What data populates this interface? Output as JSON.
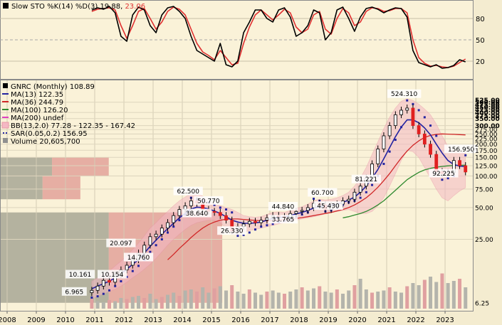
{
  "chart_data": [
    {
      "type": "line",
      "panel": "stochastic",
      "title_parts": {
        "prefix": "Slow STO %K(14) %D(3)",
        "k_value": "19.88",
        "d_value": "23.06"
      },
      "colors": {
        "k": "#000000",
        "d": "#e03030"
      },
      "ylim": [
        0,
        100
      ],
      "levels": [
        20,
        50,
        80
      ],
      "level_labels": [
        "80",
        "50",
        "20"
      ],
      "x": [
        2010.9,
        2011.1,
        2011.3,
        2011.5,
        2011.7,
        2011.9,
        2012.1,
        2012.3,
        2012.5,
        2012.7,
        2012.9,
        2013.1,
        2013.3,
        2013.5,
        2013.7,
        2013.9,
        2014.1,
        2014.3,
        2014.5,
        2014.7,
        2014.9,
        2015.1,
        2015.3,
        2015.5,
        2015.7,
        2015.9,
        2016.1,
        2016.3,
        2016.5,
        2016.7,
        2016.9,
        2017.1,
        2017.3,
        2017.5,
        2017.7,
        2017.9,
        2018.1,
        2018.3,
        2018.5,
        2018.7,
        2018.9,
        2019.1,
        2019.3,
        2019.5,
        2019.7,
        2019.9,
        2020.1,
        2020.3,
        2020.5,
        2020.7,
        2020.9,
        2021.1,
        2021.3,
        2021.5,
        2021.7,
        2021.9,
        2022.1,
        2022.3,
        2022.5,
        2022.7,
        2022.9,
        2023.1,
        2023.3,
        2023.5,
        2023.7
      ],
      "k": [
        92,
        95,
        93,
        97,
        88,
        55,
        48,
        85,
        96,
        92,
        70,
        60,
        85,
        95,
        97,
        90,
        80,
        55,
        35,
        30,
        25,
        20,
        45,
        15,
        12,
        20,
        60,
        75,
        92,
        92,
        80,
        75,
        92,
        95,
        82,
        55,
        60,
        70,
        92,
        88,
        50,
        60,
        92,
        96,
        80,
        62,
        82,
        94,
        96,
        93,
        88,
        92,
        95,
        94,
        82,
        35,
        18,
        15,
        12,
        15,
        10,
        11,
        14,
        22,
        19
      ],
      "d": [
        90,
        93,
        94,
        95,
        92,
        70,
        52,
        70,
        90,
        94,
        80,
        65,
        75,
        90,
        96,
        93,
        85,
        65,
        45,
        33,
        28,
        22,
        35,
        25,
        15,
        17,
        45,
        68,
        85,
        92,
        85,
        78,
        85,
        93,
        88,
        68,
        60,
        65,
        85,
        90,
        65,
        58,
        80,
        94,
        88,
        70,
        75,
        90,
        95,
        94,
        90,
        91,
        94,
        94,
        88,
        50,
        25,
        17,
        13,
        14,
        12,
        11,
        13,
        18,
        23
      ]
    },
    {
      "type": "line",
      "panel": "price",
      "title": "GNRC (Monthly) 108.89",
      "ylog": true,
      "ylim": [
        5.5,
        600
      ],
      "xlim": [
        2008,
        2023.95
      ],
      "x_tick_labels": [
        "2008",
        "2009",
        "2010",
        "2011",
        "2012",
        "2013",
        "2014",
        "2015",
        "2016",
        "2017",
        "2018",
        "2019",
        "2020",
        "2021",
        "2022",
        "2023"
      ],
      "y_tick_labels": [
        "525.00",
        "500.00",
        "475.00",
        "450.00",
        "425.00",
        "400.00",
        "375.00",
        "350.00",
        "300.00",
        "275.00",
        "250.00",
        "225.00",
        "200.00",
        "175.00",
        "150.00",
        "125.00",
        "100.00",
        "75.00",
        "50.00",
        "25.00",
        "6.25"
      ],
      "y_tick_values": [
        525,
        500,
        475,
        450,
        425,
        400,
        375,
        350,
        300,
        275,
        250,
        225,
        200,
        175,
        150,
        125,
        100,
        75,
        50,
        25,
        6.25
      ],
      "legend": [
        {
          "label": "GNRC (Monthly) 108.89",
          "color": "#000000",
          "marker": "square"
        },
        {
          "label": "MA(13) 122.35",
          "color": "#2323a0",
          "marker": "line"
        },
        {
          "label": "MA(36) 244.79",
          "color": "#d02828",
          "marker": "line"
        },
        {
          "label": "MA(100) 126.20",
          "color": "#2f8a2f",
          "marker": "line"
        },
        {
          "label": "MA(200) undef",
          "color": "#e040c0",
          "marker": "line"
        },
        {
          "label": "BB(13,2.0) 77.28 - 122.35 - 167.42",
          "color": "#f0a0b0",
          "marker": "band"
        },
        {
          "label": "SAR(0.05,0.2) 156.95",
          "color": "#2323a0",
          "marker": "dots"
        },
        {
          "label": "Volume 20,605,700",
          "color": "#909090",
          "marker": "square"
        }
      ],
      "annotations": [
        {
          "text": "524.310",
          "x": 2021.6,
          "y": 524.31
        },
        {
          "text": "156.950",
          "x": 2023.55,
          "y": 156.95
        },
        {
          "text": "92.225",
          "x": 2022.95,
          "y": 92.225
        },
        {
          "text": "81.221",
          "x": 2020.3,
          "y": 81.221
        },
        {
          "text": "60.700",
          "x": 2018.8,
          "y": 60.7
        },
        {
          "text": "45.430",
          "x": 2019.0,
          "y": 45.43
        },
        {
          "text": "44.840",
          "x": 2017.45,
          "y": 44.84
        },
        {
          "text": "33.765",
          "x": 2017.45,
          "y": 33.765
        },
        {
          "text": "62.500",
          "x": 2014.2,
          "y": 62.5
        },
        {
          "text": "50.770",
          "x": 2014.9,
          "y": 50.77
        },
        {
          "text": "38.640",
          "x": 2014.5,
          "y": 38.64
        },
        {
          "text": "26.330",
          "x": 2015.7,
          "y": 26.33
        },
        {
          "text": "20.097",
          "x": 2011.9,
          "y": 20.097
        },
        {
          "text": "14.760",
          "x": 2012.5,
          "y": 14.76
        },
        {
          "text": "10.161",
          "x": 2010.5,
          "y": 10.161
        },
        {
          "text": "10.154",
          "x": 2011.6,
          "y": 10.154
        },
        {
          "text": "6.965",
          "x": 2010.3,
          "y": 6.965
        }
      ],
      "series": [
        {
          "name": "GNRC (Monthly) 108.89",
          "color": "#000000",
          "y": [
            8.2,
            9.0,
            10.2,
            9.8,
            11.5,
            12.8,
            14.2,
            16.0,
            18.5,
            22.0,
            26.5,
            28.0,
            32.0,
            36.0,
            42.0,
            48.0,
            52.0,
            58.0,
            55.0,
            48.0,
            46.0,
            45.0,
            42.0,
            38.0,
            30.0,
            33.0,
            35.0,
            37.0,
            36.0,
            38.0,
            40.0,
            42.0,
            41.0,
            40.0,
            44.0,
            46.0,
            47.0,
            50.0,
            55.0,
            53.0,
            48.0,
            52.0,
            54.0,
            58.0,
            60.0,
            70.0,
            80.0,
            95.0,
            130.0,
            180.0,
            240.0,
            300.0,
            380.0,
            420.0,
            440.0,
            300.0,
            250.0,
            200.0,
            160.0,
            110.0,
            105.0,
            108.0,
            140.0,
            125.0,
            108.89
          ]
        },
        {
          "name": "MA(13) 122.35",
          "color": "#2323a0",
          "y": [
            8.5,
            9.0,
            9.5,
            10.0,
            10.8,
            11.8,
            13.0,
            14.5,
            16.0,
            18.5,
            21.5,
            24.5,
            28.0,
            31.5,
            35.5,
            40.0,
            44.0,
            48.5,
            50.5,
            50.0,
            48.5,
            46.5,
            44.0,
            41.0,
            38.0,
            36.5,
            35.5,
            35.5,
            35.8,
            36.5,
            38.0,
            39.5,
            40.2,
            40.8,
            42.0,
            43.5,
            45.0,
            47.0,
            49.5,
            51.0,
            51.5,
            52.5,
            54.0,
            56.0,
            59.0,
            63.0,
            70.0,
            80.0,
            95.0,
            115.0,
            145.0,
            185.0,
            235.0,
            290.0,
            340.0,
            340.0,
            320.0,
            285.0,
            245.0,
            200.0,
            165.0,
            140.0,
            128.0,
            124.0,
            122.35
          ]
        },
        {
          "name": "MA(36) 244.79",
          "color": "#d02828",
          "y": [
            null,
            null,
            null,
            null,
            null,
            null,
            null,
            null,
            null,
            null,
            null,
            null,
            null,
            16.0,
            18.0,
            20.5,
            23.0,
            26.0,
            29.0,
            32.0,
            34.5,
            36.5,
            38.0,
            38.8,
            39.0,
            39.0,
            38.6,
            38.2,
            37.8,
            37.5,
            37.5,
            37.6,
            38.0,
            38.5,
            39.0,
            39.5,
            40.2,
            41.0,
            42.0,
            43.0,
            44.0,
            45.0,
            46.5,
            48.0,
            50.0,
            53.0,
            57.0,
            62.0,
            69.0,
            78.0,
            90.0,
            105.0,
            125.0,
            148.0,
            172.0,
            195.0,
            215.0,
            232.0,
            242.0,
            248.0,
            250.0,
            249.0,
            248.0,
            246.5,
            244.79
          ]
        },
        {
          "name": "MA(100) 126.20",
          "color": "#2f8a2f",
          "y": [
            null,
            null,
            null,
            null,
            null,
            null,
            null,
            null,
            null,
            null,
            null,
            null,
            null,
            null,
            null,
            null,
            null,
            null,
            null,
            null,
            null,
            null,
            null,
            null,
            null,
            null,
            null,
            null,
            null,
            null,
            null,
            null,
            null,
            null,
            null,
            null,
            null,
            null,
            null,
            null,
            null,
            null,
            null,
            40.0,
            41.0,
            42.5,
            44.0,
            46.0,
            49.0,
            53.0,
            58.0,
            65.0,
            73.0,
            82.0,
            92.0,
            100.0,
            108.0,
            114.0,
            118.0,
            121.0,
            123.0,
            124.5,
            125.5,
            126.0,
            126.2
          ]
        },
        {
          "name": "BB upper",
          "color": "#f0a0b0",
          "y": [
            10.0,
            10.8,
            11.8,
            12.5,
            14.0,
            15.5,
            17.5,
            20.0,
            23.0,
            27.0,
            32.0,
            36.0,
            41.0,
            46.0,
            52.0,
            58.0,
            63.0,
            68.0,
            68.0,
            64.0,
            58.0,
            54.0,
            52.0,
            50.0,
            48.0,
            45.0,
            42.0,
            41.0,
            40.5,
            41.0,
            43.0,
            45.0,
            45.5,
            45.0,
            47.0,
            49.0,
            51.0,
            54.0,
            58.0,
            60.0,
            59.0,
            60.0,
            62.0,
            65.0,
            70.0,
            80.0,
            95.0,
            120.0,
            160.0,
            210.0,
            280.0,
            360.0,
            440.0,
            510.0,
            540.0,
            520.0,
            480.0,
            430.0,
            380.0,
            310.0,
            240.0,
            190.0,
            170.0,
            168.0,
            167.42
          ]
        },
        {
          "name": "BB lower",
          "color": "#f0a0b0",
          "y": [
            6.8,
            7.2,
            7.6,
            8.0,
            8.4,
            9.0,
            9.8,
            10.8,
            11.8,
            13.0,
            14.5,
            16.5,
            19.0,
            22.0,
            25.0,
            28.0,
            31.0,
            34.0,
            36.0,
            37.0,
            38.0,
            38.0,
            36.0,
            32.0,
            28.0,
            27.5,
            29.0,
            30.5,
            31.0,
            32.0,
            33.0,
            34.0,
            35.0,
            36.0,
            37.0,
            38.0,
            39.0,
            40.0,
            41.0,
            42.0,
            44.0,
            45.0,
            46.0,
            47.0,
            48.0,
            46.0,
            44.0,
            44.0,
            46.0,
            52.0,
            62.0,
            80.0,
            105.0,
            140.0,
            175.0,
            170.0,
            150.0,
            120.0,
            95.0,
            75.0,
            62.0,
            58.0,
            65.0,
            72.0,
            77.28
          ]
        },
        {
          "name": "SAR(0.05,0.2) 156.95",
          "color": "#2323a0",
          "y": [
            7.0,
            7.2,
            7.6,
            8.2,
            9.0,
            10.0,
            11.0,
            12.5,
            14.0,
            16.0,
            19.0,
            22.0,
            25.0,
            29.0,
            33.0,
            38.0,
            43.0,
            62.0,
            60.0,
            58.0,
            56.0,
            53.0,
            50.0,
            48.0,
            45.0,
            27.0,
            27.5,
            29.0,
            31.0,
            33.0,
            34.0,
            35.0,
            36.5,
            37.5,
            39.0,
            41.0,
            43.0,
            45.0,
            60.7,
            58.0,
            46.0,
            47.0,
            50.0,
            53.0,
            56.0,
            58.0,
            62.0,
            70.0,
            82.0,
            100.0,
            130.0,
            170.0,
            220.0,
            290.0,
            520.0,
            480.0,
            420.0,
            360.0,
            300.0,
            240.0,
            92.0,
            95.0,
            100.0,
            125.0,
            156.95
          ]
        },
        {
          "name": "Volume 20,605,700",
          "color": "#a8a8a8",
          "y": [
            9,
            7,
            6,
            8,
            7,
            10,
            9,
            11,
            12,
            10,
            14,
            9,
            11,
            13,
            15,
            12,
            17,
            18,
            16,
            20,
            15,
            19,
            21,
            17,
            22,
            16,
            14,
            18,
            15,
            13,
            16,
            17,
            15,
            14,
            16,
            18,
            20,
            17,
            19,
            21,
            16,
            15,
            18,
            14,
            17,
            22,
            28,
            18,
            15,
            16,
            17,
            20,
            16,
            15,
            21,
            24,
            22,
            27,
            30,
            25,
            33,
            24,
            26,
            28,
            20
          ]
        }
      ],
      "price_by_volume": [
        {
          "lo": 100,
          "hi": 150,
          "up": 0.11,
          "down": 0.12
        },
        {
          "lo": 60,
          "hi": 100,
          "up": 0.09,
          "down": 0.08
        },
        {
          "lo": 6.25,
          "hi": 45,
          "up": 0.23,
          "down": 0.24
        }
      ]
    }
  ]
}
